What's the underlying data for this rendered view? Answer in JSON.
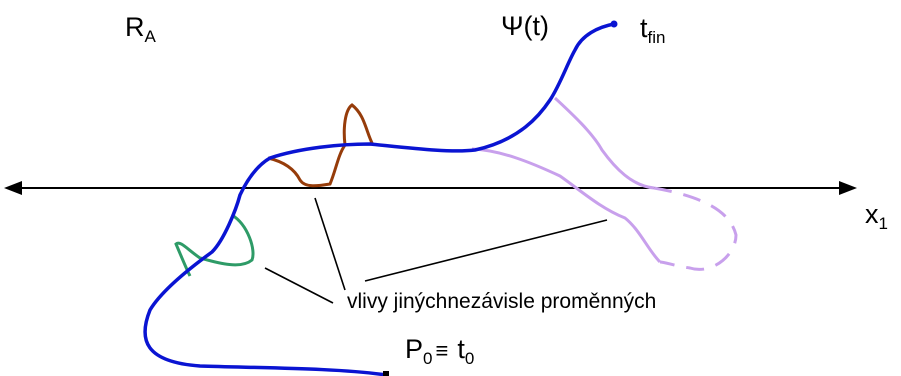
{
  "labels": {
    "region_main": "R",
    "region_sub": "A",
    "psi": "Ψ(t)",
    "tfin_main": "t",
    "tfin_sub": "fin",
    "x_main": "x",
    "x_sub": "1",
    "p0_main": "P",
    "p0_sub": "0",
    "equiv": "≡",
    "t0_main": "t",
    "t0_sub": "0",
    "annotation": "vlivy jinýchnezávisle proměnných"
  },
  "colors": {
    "main_path": "#0a14d2",
    "brown": "#963c0a",
    "green": "#2e9b67",
    "lavender": "#c8a0ec",
    "axis": "#000000"
  }
}
